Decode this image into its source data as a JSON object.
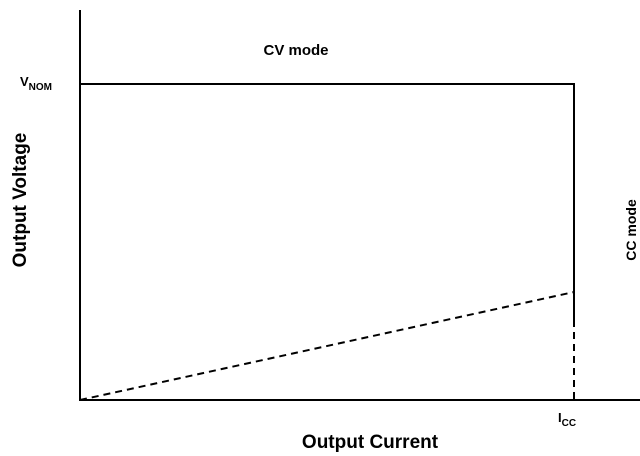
{
  "diagram": {
    "region_label": "CV mode",
    "side_label": "CC mode",
    "y_axis_label": "Output Voltage",
    "x_axis_label": "Output Current",
    "y_marker": {
      "main": "V",
      "sub": "NOM"
    },
    "x_marker": {
      "main": "I",
      "sub": "CC"
    }
  }
}
